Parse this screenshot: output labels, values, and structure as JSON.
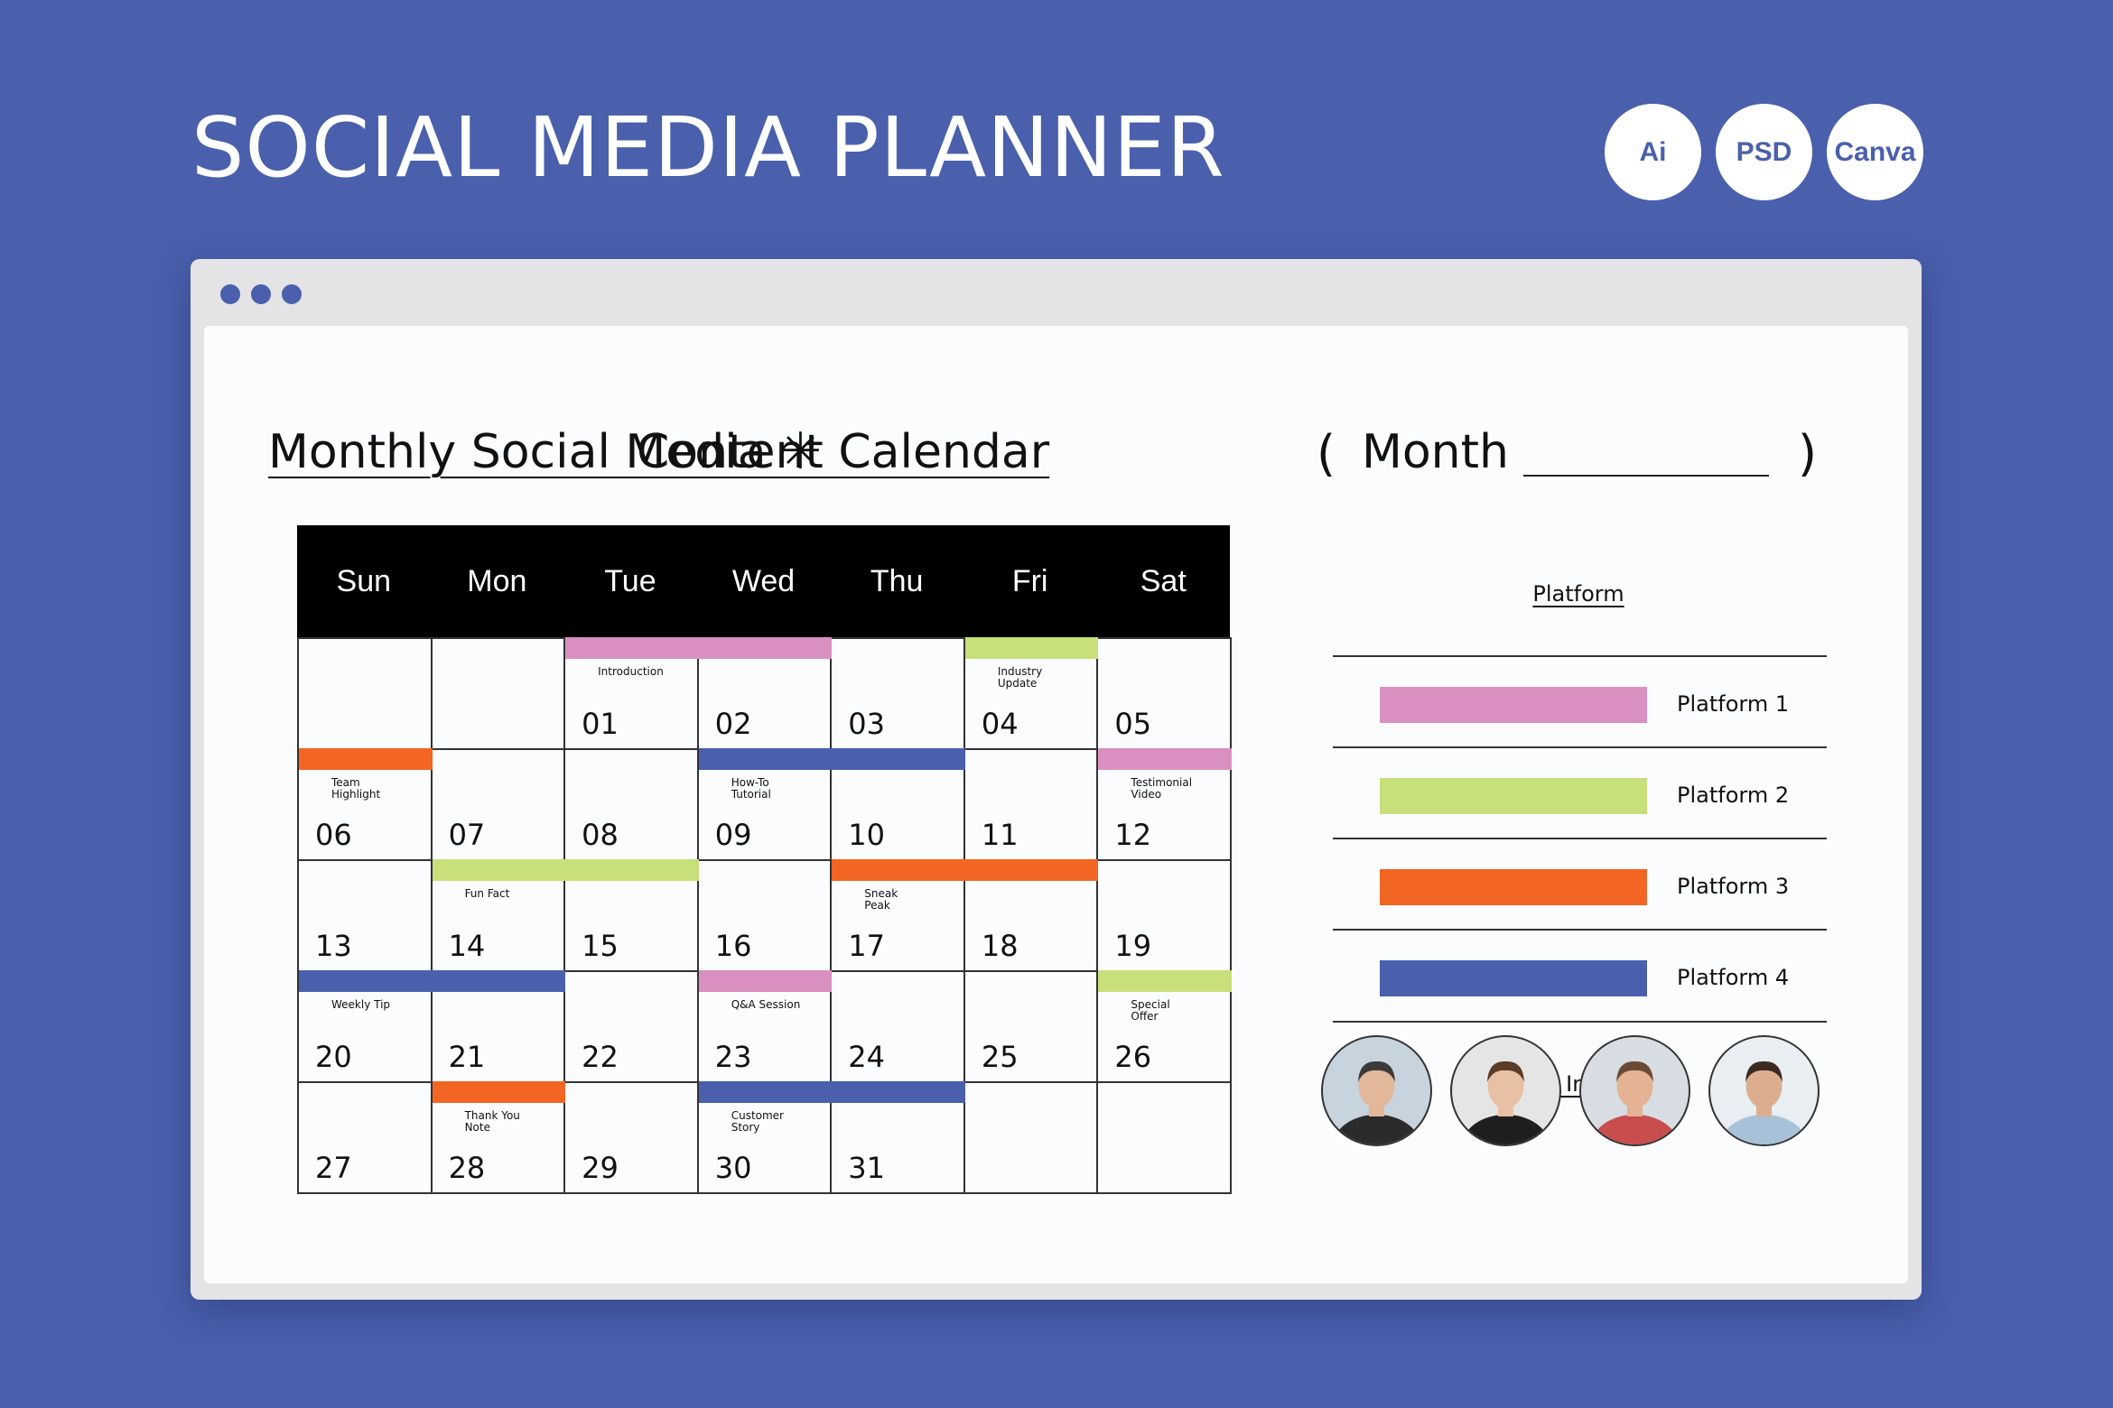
{
  "title": "SOCIAL MEDIA PLANNER",
  "badges": [
    "Ai",
    "PSD",
    "Canva"
  ],
  "colors": {
    "background": "#4a60ad",
    "platform_1": "#d990c0",
    "platform_2": "#c7e07a",
    "platform_3": "#f26522",
    "platform_4": "#4a60ad"
  },
  "heading": {
    "left": "Monthly Social Media",
    "separator": "✳",
    "right": "Content Calendar",
    "month_open": "(",
    "month_label": "Month",
    "month_close": ")"
  },
  "weekdays": [
    "Sun",
    "Mon",
    "Tue",
    "Wed",
    "Thu",
    "Fri",
    "Sat"
  ],
  "weeks": [
    [
      "",
      "",
      "01",
      "02",
      "03",
      "04",
      "05"
    ],
    [
      "06",
      "07",
      "08",
      "09",
      "10",
      "11",
      "12"
    ],
    [
      "13",
      "14",
      "15",
      "16",
      "17",
      "18",
      "19"
    ],
    [
      "20",
      "21",
      "22",
      "23",
      "24",
      "25",
      "26"
    ],
    [
      "27",
      "28",
      "29",
      "30",
      "31",
      "",
      ""
    ]
  ],
  "events": [
    {
      "label": "Introduction",
      "platform": 1,
      "week": 0,
      "start": 2,
      "span": 2
    },
    {
      "label": "Industry\nUpdate",
      "platform": 2,
      "week": 0,
      "start": 5,
      "span": 1
    },
    {
      "label": "Team\nHighlight",
      "platform": 3,
      "week": 1,
      "start": 0,
      "span": 1
    },
    {
      "label": "How-To\nTutorial",
      "platform": 4,
      "week": 1,
      "start": 3,
      "span": 2
    },
    {
      "label": "Testimonial\nVideo",
      "platform": 1,
      "week": 1,
      "start": 6,
      "span": 1
    },
    {
      "label": "Fun Fact",
      "platform": 2,
      "week": 2,
      "start": 1,
      "span": 2
    },
    {
      "label": "Sneak\nPeak",
      "platform": 3,
      "week": 2,
      "start": 4,
      "span": 2
    },
    {
      "label": "Weekly Tip",
      "platform": 4,
      "week": 3,
      "start": 0,
      "span": 2
    },
    {
      "label": "Q&A Session",
      "platform": 1,
      "week": 3,
      "start": 3,
      "span": 1
    },
    {
      "label": "Special\nOffer",
      "platform": 2,
      "week": 3,
      "start": 6,
      "span": 1
    },
    {
      "label": "Thank You\nNote",
      "platform": 3,
      "week": 4,
      "start": 1,
      "span": 1
    },
    {
      "label": "Customer\nStory",
      "platform": 4,
      "week": 4,
      "start": 3,
      "span": 2
    }
  ],
  "platform_section": {
    "title": "Platform",
    "items": [
      {
        "label": "Platform 1",
        "color": "#d990c0"
      },
      {
        "label": "Platform 2",
        "color": "#c7e07a"
      },
      {
        "label": "Platform 3",
        "color": "#f26522"
      },
      {
        "label": "Platform 4",
        "color": "#4a60ad"
      }
    ]
  },
  "person_section": {
    "title": "Person In Charge",
    "people": [
      {
        "icon": "person-photo-icon",
        "shirt": "#2b2b2b",
        "skin": "#e2b79a",
        "hair": "#3a3a3a",
        "bg": "#c7d3dd"
      },
      {
        "icon": "person-photo-icon",
        "shirt": "#1f1f1f",
        "skin": "#e8c0a4",
        "hair": "#5a3b27",
        "bg": "#e5e5e5"
      },
      {
        "icon": "person-photo-icon",
        "shirt": "#c94d4d",
        "skin": "#e3b393",
        "hair": "#6b4a35",
        "bg": "#d8dde4"
      },
      {
        "icon": "person-photo-icon",
        "shirt": "#a7c1d8",
        "skin": "#dcae8f",
        "hair": "#3b2a20",
        "bg": "#e8eef2"
      }
    ]
  }
}
